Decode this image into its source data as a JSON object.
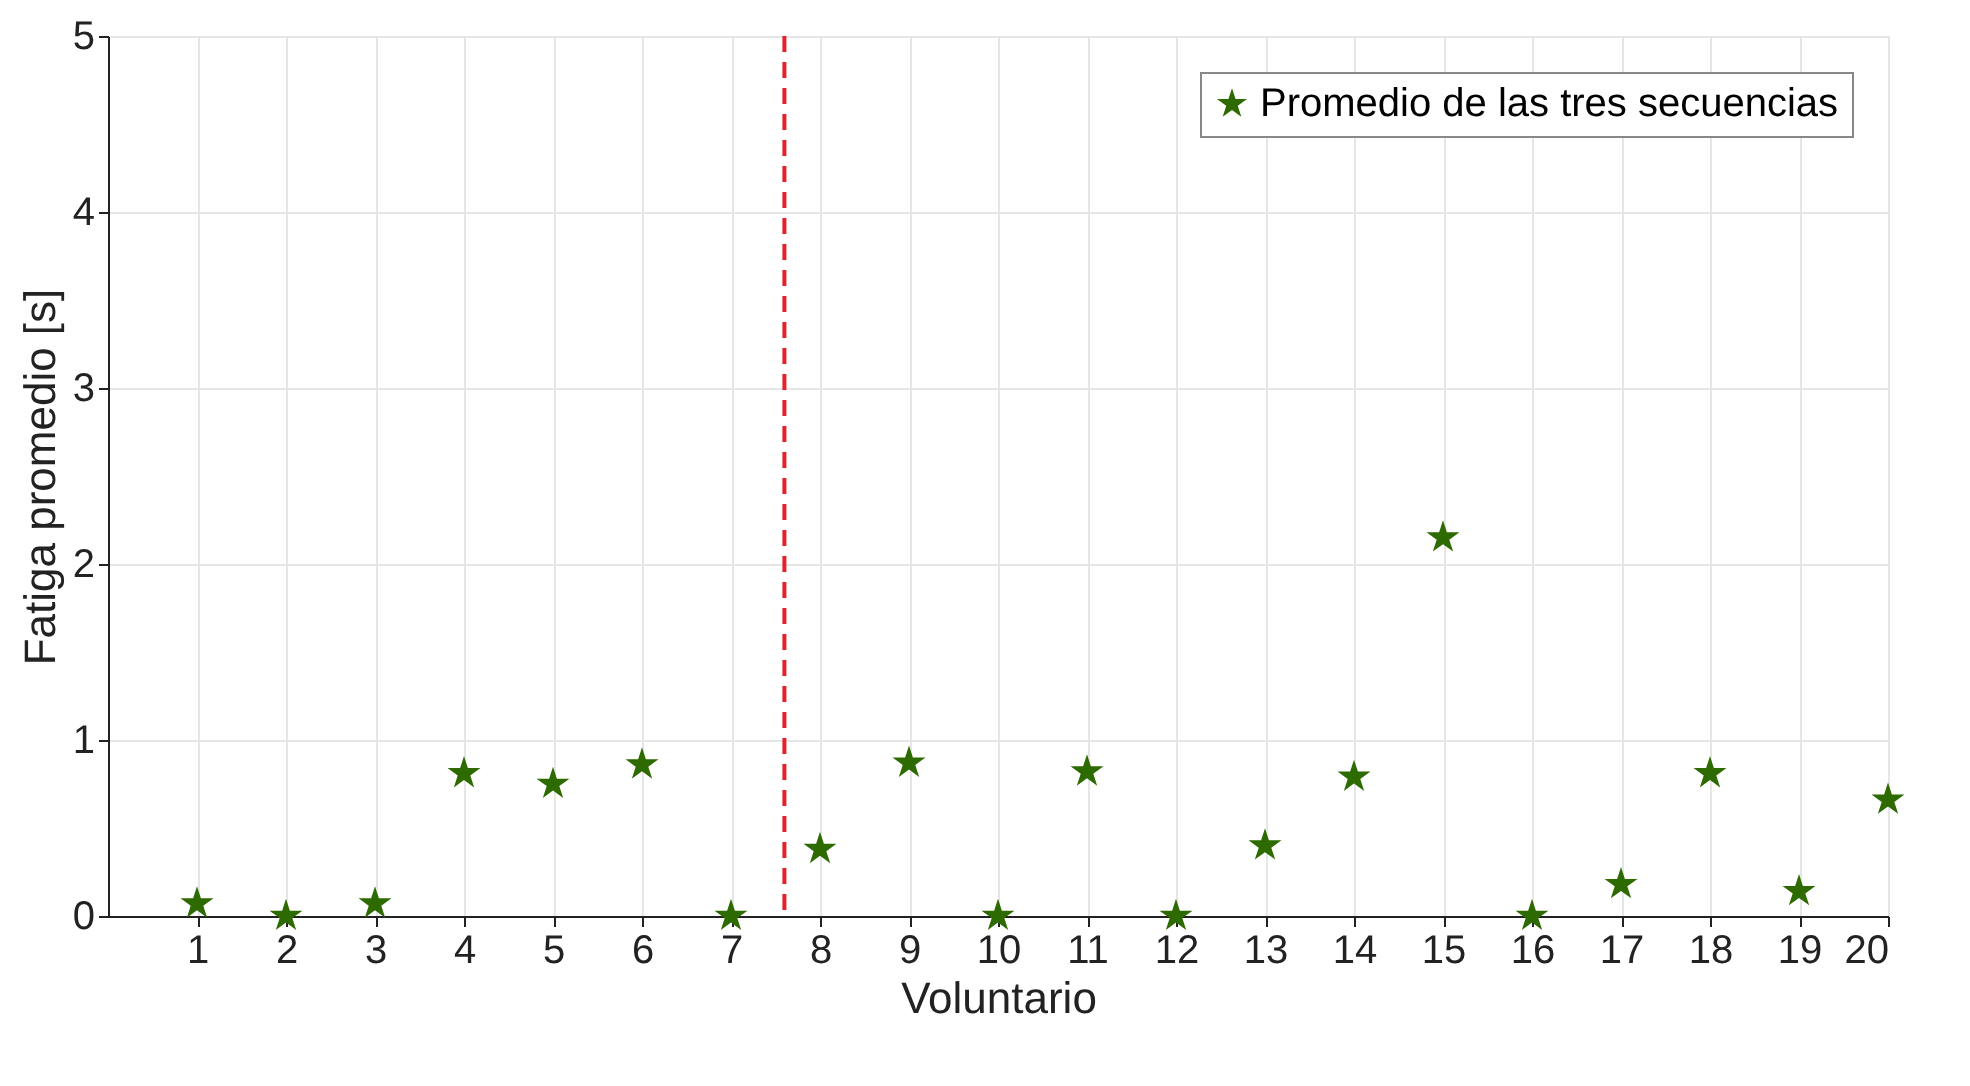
{
  "chart_data": {
    "type": "scatter",
    "xlabel": "Voluntario",
    "ylabel": "Fatiga promedio [s]",
    "x": [
      1,
      2,
      3,
      4,
      5,
      6,
      7,
      8,
      9,
      10,
      11,
      12,
      13,
      14,
      15,
      16,
      17,
      18,
      19,
      20
    ],
    "series": [
      {
        "name": "Promedio de las tres secuencias",
        "color": "#2d6a00",
        "values": [
          0.07,
          0,
          0.07,
          0.81,
          0.75,
          0.86,
          0,
          0.38,
          0.87,
          0,
          0.82,
          0,
          0.4,
          0.79,
          2.15,
          0,
          0.18,
          0.81,
          0.14,
          0.66
        ]
      }
    ],
    "xlim": [
      0,
      20
    ],
    "xticks": [
      1,
      2,
      3,
      4,
      5,
      6,
      7,
      8,
      9,
      10,
      11,
      12,
      13,
      14,
      15,
      16,
      17,
      18,
      19,
      20
    ],
    "ylim": [
      0,
      5
    ],
    "yticks": [
      0,
      1,
      2,
      3,
      4,
      5
    ],
    "ref_lines": [
      {
        "axis": "x",
        "value": 7.6,
        "color": "#e8202a",
        "line_style": "dashed"
      }
    ],
    "grid": true,
    "legend": "top right",
    "marker": "star"
  }
}
